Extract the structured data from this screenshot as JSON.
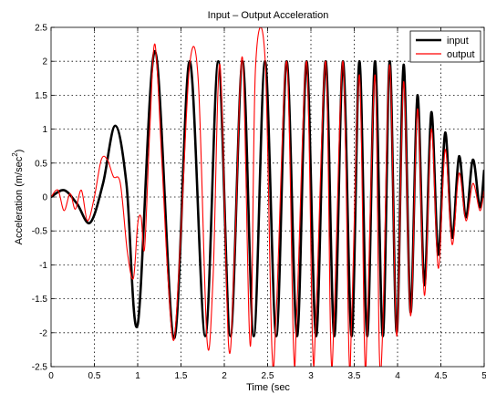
{
  "chart_data": {
    "type": "line",
    "title": "Input – Output Acceleration",
    "xlabel": "Time (sec",
    "ylabel": "Acceleration (m/sec",
    "ylabel_superscript": "2",
    "ylabel_close": ")",
    "xlim": [
      0,
      5
    ],
    "ylim": [
      -2.5,
      2.5
    ],
    "xticks": [
      "0",
      "0.5",
      "1",
      "1.5",
      "2",
      "2.5",
      "3",
      "3.5",
      "4",
      "4.5",
      "5"
    ],
    "yticks": [
      "-2.5",
      "-2",
      "-1.5",
      "-1",
      "-0.5",
      "0",
      "0.5",
      "1",
      "1.5",
      "2",
      "2.5"
    ],
    "grid": true,
    "legend_position": "top-right",
    "series": [
      {
        "name": "input",
        "color": "#000000",
        "x": [
          0,
          0.15,
          0.3,
          0.45,
          0.6,
          0.74,
          0.87,
          1.0,
          1.2,
          1.42,
          1.6,
          1.78,
          1.93,
          2.07,
          2.21,
          2.34,
          2.47,
          2.6,
          2.72,
          2.84,
          2.95,
          3.06,
          3.17,
          3.27,
          3.37,
          3.47,
          3.56,
          3.65,
          3.74,
          3.83,
          3.91,
          3.99,
          4.07,
          4.15,
          4.23,
          4.31,
          4.39,
          4.47,
          4.55,
          4.63,
          4.71,
          4.79,
          4.87,
          4.95,
          5.0
        ],
        "y": [
          0,
          0.1,
          -0.1,
          -0.38,
          0.2,
          1.05,
          0.2,
          -1.88,
          2.15,
          -2.08,
          2.0,
          -2.05,
          2.0,
          -2.05,
          2.0,
          -2.05,
          2.0,
          -2.05,
          2.0,
          -2.05,
          2.0,
          -2.05,
          2.0,
          -2.05,
          2.0,
          -2.05,
          2.0,
          -2.05,
          2.0,
          -2.05,
          2.0,
          -2.0,
          1.95,
          -1.7,
          1.5,
          -1.3,
          1.25,
          -0.85,
          0.95,
          -0.6,
          0.6,
          -0.3,
          0.55,
          -0.15,
          0.4
        ]
      },
      {
        "name": "output",
        "color": "#ff0000",
        "x": [
          0,
          0.08,
          0.15,
          0.22,
          0.28,
          0.35,
          0.42,
          0.5,
          0.58,
          0.65,
          0.72,
          0.8,
          0.88,
          0.95,
          1.0,
          1.04,
          1.08,
          1.14,
          1.2,
          1.28,
          1.35,
          1.42,
          1.5,
          1.6,
          1.7,
          1.8,
          1.87,
          1.95,
          2.05,
          2.12,
          2.21,
          2.3,
          2.36,
          2.47,
          2.55,
          2.6,
          2.72,
          2.8,
          2.84,
          2.95,
          3.02,
          3.06,
          3.17,
          3.23,
          3.27,
          3.37,
          3.44,
          3.47,
          3.56,
          3.62,
          3.65,
          3.74,
          3.79,
          3.83,
          3.91,
          3.99,
          4.07,
          4.15,
          4.23,
          4.31,
          4.39,
          4.47,
          4.55,
          4.63,
          4.71,
          4.79,
          4.87,
          4.95,
          5.0
        ],
        "y": [
          0,
          0.1,
          -0.2,
          0.05,
          -0.18,
          0.1,
          -0.35,
          0.0,
          0.55,
          0.55,
          0.3,
          0.2,
          -0.8,
          -1.2,
          -0.4,
          -0.3,
          -0.75,
          1.0,
          2.25,
          0.5,
          -1.2,
          -2.1,
          -0.5,
          1.95,
          1.7,
          -2.1,
          -1.2,
          1.95,
          -2.2,
          -0.8,
          2.05,
          -2.2,
          1.9,
          2.05,
          -2.25,
          -1.7,
          2.0,
          -2.25,
          -1.6,
          2.0,
          -2.2,
          -1.7,
          2.0,
          -2.25,
          -1.7,
          2.0,
          -2.35,
          -1.8,
          1.8,
          -2.3,
          -1.9,
          1.8,
          -2.3,
          -1.9,
          1.95,
          -2.05,
          1.7,
          -1.75,
          1.3,
          -1.45,
          1.0,
          -1.05,
          0.7,
          -0.7,
          0.35,
          -0.35,
          0.2,
          -0.2,
          0.1
        ]
      }
    ]
  }
}
